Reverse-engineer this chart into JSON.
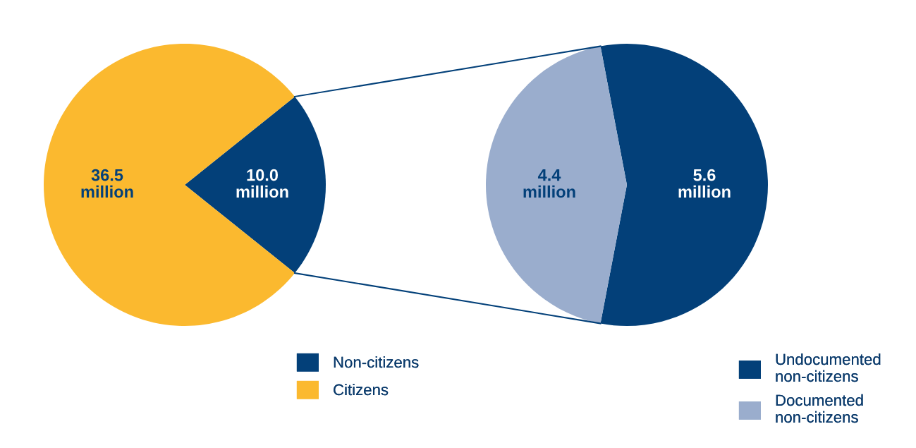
{
  "chart_data": [
    {
      "type": "pie",
      "categories": [
        "Non-citizens",
        "Citizens"
      ],
      "values": [
        10.0,
        36.5
      ],
      "colors": [
        "#034079",
        "#fbb92f"
      ],
      "value_labels": [
        "10.0 million",
        "36.5 million"
      ],
      "legend": "bottom right"
    },
    {
      "type": "pie",
      "categories": [
        "Undocumented\nnon-citizens",
        "Documented\nnon-citizens"
      ],
      "values": [
        5.6,
        4.4
      ],
      "colors": [
        "#034079",
        "#9aadcd"
      ],
      "value_labels": [
        "5.6 million",
        "4.4 million"
      ],
      "legend": "bottom right"
    }
  ]
}
